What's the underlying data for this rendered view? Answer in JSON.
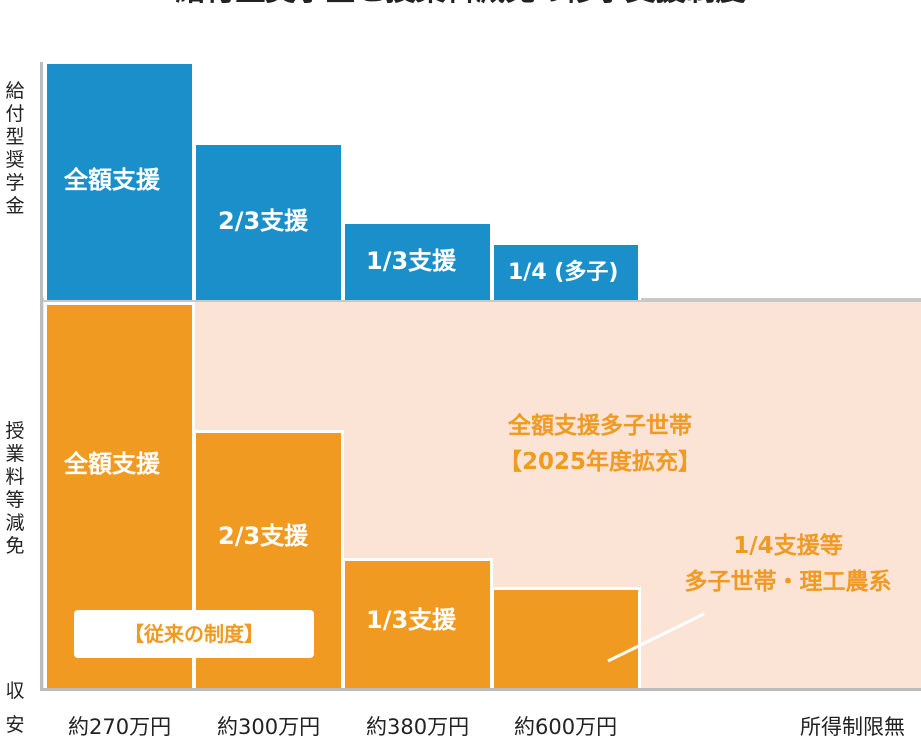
{
  "chart_data": {
    "type": "bar",
    "title": "給付型奨学金と授業料減免の修学支援制度",
    "y_group_labels": [
      "給付型奨学金",
      "授業料等減免"
    ],
    "axis_label_partial": [
      "収",
      "安"
    ],
    "categories": [
      "約270万円",
      "約300万円",
      "約380万円",
      "約600万円",
      "所得制限無"
    ],
    "series": [
      {
        "name": "給付型奨学金",
        "values": [
          1,
          0.667,
          0.333,
          0.25,
          0
        ],
        "labels": [
          "全額支援",
          "2/3支援",
          "1/3支援",
          "1/4 (多子)",
          ""
        ]
      },
      {
        "name": "授業料等減免",
        "values": [
          1,
          0.667,
          0.333,
          0.25,
          0
        ],
        "labels": [
          "全額支援",
          "2/3支援",
          "1/3支援",
          "",
          ""
        ]
      }
    ],
    "annotations": {
      "old_system": "【従来の制度】",
      "expansion_line1": "全額支援多子世帯",
      "expansion_line2": "【2025年度拡充】",
      "quarter_line1": "1/4支援等",
      "quarter_line2": "多子世帯・理工農系"
    },
    "colors": {
      "scholarship": "#1a8fca",
      "tuition": "#f19a22",
      "expansion_bg": "#fbe3d6"
    }
  }
}
